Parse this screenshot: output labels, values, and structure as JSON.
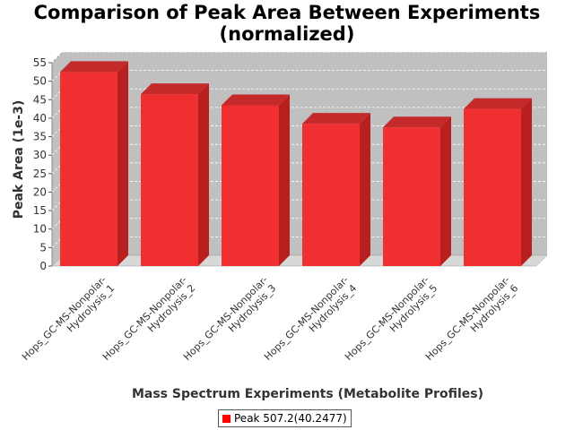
{
  "chart_data": {
    "type": "bar",
    "title_line1": "Comparison of Peak Area Between Experiments",
    "title_line2": "(normalized)",
    "xlabel": "Mass Spectrum Experiments (Metabolite Profiles)",
    "ylabel": "Peak Area (1e-3)",
    "ylim": [
      0,
      55
    ],
    "yticks": [
      0,
      5,
      10,
      15,
      20,
      25,
      30,
      35,
      40,
      45,
      50,
      55
    ],
    "categories": [
      [
        "Hops_GC-MS-Nonpolar-",
        "Hydrolysis_1"
      ],
      [
        "Hops_GC-MS-Nonpolar-",
        "Hydrolysis_2"
      ],
      [
        "Hops_GC-MS-Nonpolar-",
        "Hydrolysis_3"
      ],
      [
        "Hops_GC-MS-Nonpolar-",
        "Hydrolysis_4"
      ],
      [
        "Hops_GC-MS-Nonpolar-",
        "Hydrolysis_5"
      ],
      [
        "Hops_GC-MS-Nonpolar-",
        "Hydrolysis_6"
      ]
    ],
    "series": [
      {
        "name": "Peak 507.2(40.2477)",
        "color": "#ff0000",
        "values": [
          52.5,
          46.5,
          43.5,
          38.5,
          37.5,
          42.5
        ]
      }
    ],
    "grid": true,
    "legend_position": "bottom-center",
    "style": "3d"
  }
}
